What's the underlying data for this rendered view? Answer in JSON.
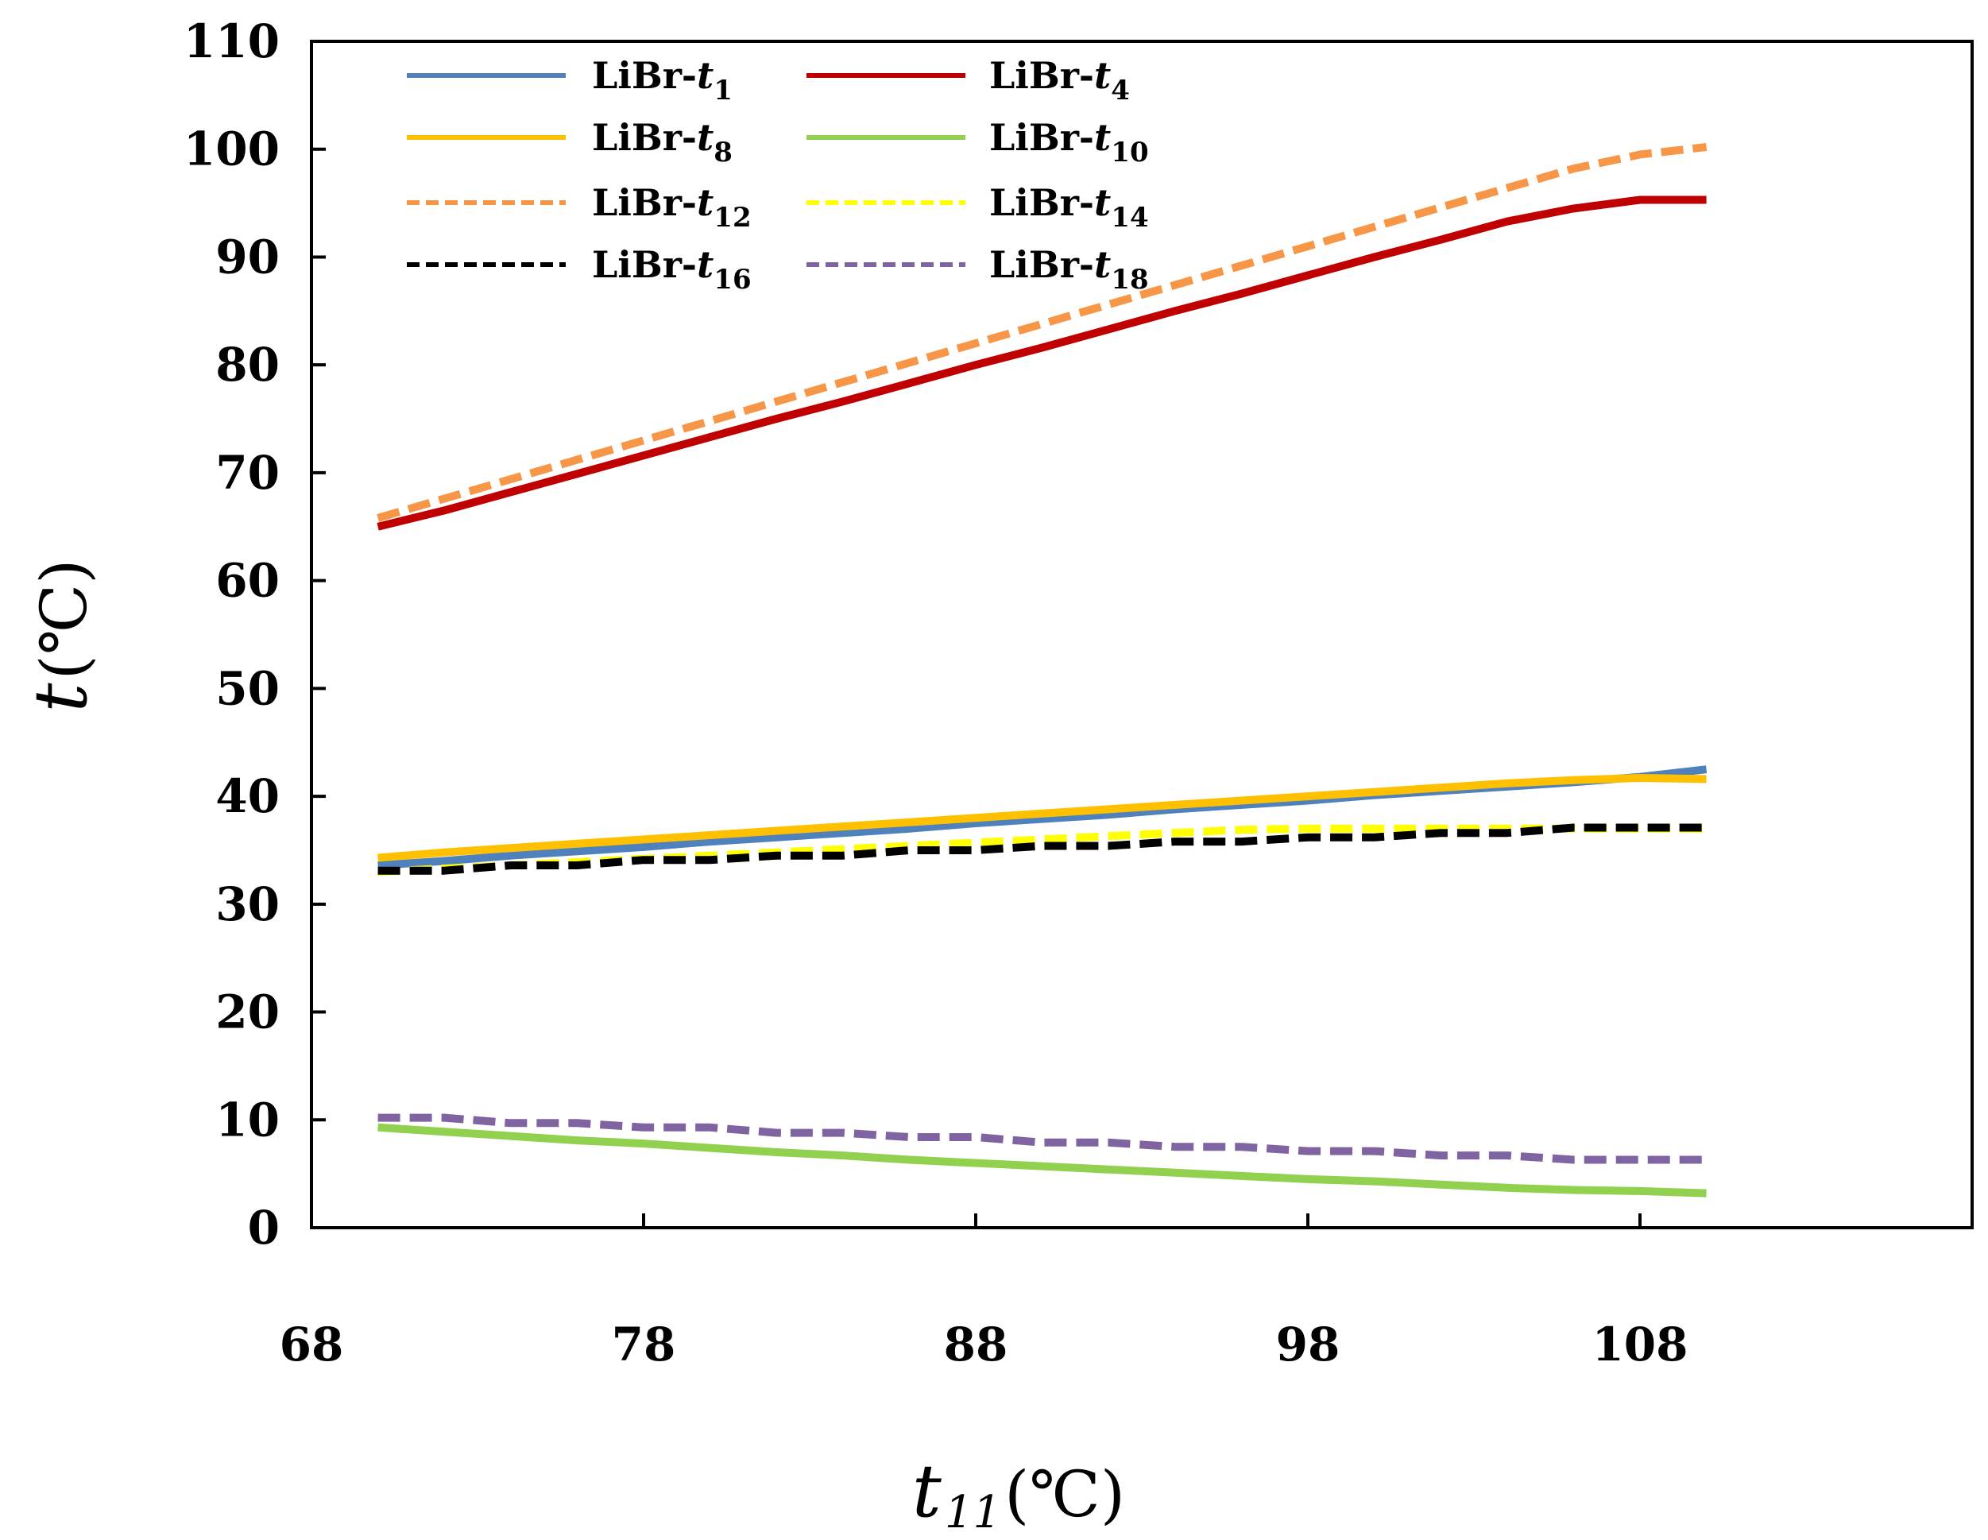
{
  "chart_data": {
    "type": "line",
    "title": "",
    "xlabel": {
      "main": "t",
      "sub": "11",
      "unit": "(℃)"
    },
    "ylabel": {
      "main": "t",
      "unit": "(℃)"
    },
    "xlim": [
      68,
      118
    ],
    "ylim": [
      0,
      110
    ],
    "xticks": [
      "68",
      "78",
      "88",
      "98",
      "108"
    ],
    "yticks": [
      "0",
      "10",
      "20",
      "30",
      "40",
      "50",
      "60",
      "70",
      "80",
      "90",
      "100",
      "110"
    ],
    "grid": false,
    "legend_position": "top-left",
    "x": [
      70,
      72,
      74,
      76,
      78,
      80,
      82,
      84,
      86,
      88,
      90,
      92,
      94,
      96,
      98,
      100,
      102,
      104,
      106,
      108,
      110
    ],
    "series": [
      {
        "name": "LiBr-t1",
        "label_main": "LiBr-",
        "label_var": "t",
        "label_sub": "1",
        "color": "#4f81bd",
        "dash": "solid",
        "values": [
          33.6,
          34.0,
          34.5,
          34.9,
          35.3,
          35.8,
          36.2,
          36.6,
          37.0,
          37.5,
          37.9,
          38.3,
          38.8,
          39.2,
          39.6,
          40.1,
          40.5,
          40.9,
          41.3,
          41.8,
          42.5
        ]
      },
      {
        "name": "LiBr-t4",
        "label_main": "LiBr-",
        "label_var": "t",
        "label_sub": "4",
        "color": "#c00000",
        "dash": "solid",
        "values": [
          65.0,
          66.5,
          68.2,
          69.9,
          71.6,
          73.3,
          75.0,
          76.6,
          78.3,
          80.0,
          81.6,
          83.3,
          85.0,
          86.6,
          88.3,
          90.0,
          91.6,
          93.3,
          94.5,
          95.3,
          95.3
        ]
      },
      {
        "name": "LiBr-t8",
        "label_main": "LiBr-",
        "label_var": "t",
        "label_sub": "8",
        "color": "#ffc000",
        "dash": "solid",
        "values": [
          34.3,
          34.8,
          35.2,
          35.6,
          36.0,
          36.4,
          36.8,
          37.2,
          37.6,
          38.0,
          38.4,
          38.8,
          39.2,
          39.6,
          40.0,
          40.4,
          40.8,
          41.2,
          41.5,
          41.7,
          41.6
        ]
      },
      {
        "name": "LiBr-t10",
        "label_main": "LiBr-",
        "label_var": "t",
        "label_sub": "10",
        "color": "#92d050",
        "dash": "solid",
        "values": [
          9.3,
          8.9,
          8.5,
          8.1,
          7.8,
          7.4,
          7.0,
          6.7,
          6.3,
          6.0,
          5.7,
          5.4,
          5.1,
          4.8,
          4.5,
          4.3,
          4.0,
          3.7,
          3.5,
          3.4,
          3.2
        ]
      },
      {
        "name": "LiBr-t12",
        "label_main": "LiBr-",
        "label_var": "t",
        "label_sub": "12",
        "color": "#f79646",
        "dash": "dash",
        "values": [
          65.8,
          67.6,
          69.4,
          71.2,
          73.0,
          74.8,
          76.6,
          78.4,
          80.2,
          82.0,
          83.8,
          85.6,
          87.4,
          89.2,
          91.0,
          92.8,
          94.6,
          96.4,
          98.2,
          99.5,
          100.2
        ]
      },
      {
        "name": "LiBr-t14",
        "label_main": "LiBr-",
        "label_var": "t",
        "label_sub": "14",
        "color": "#ffff00",
        "dash": "dash",
        "values": [
          33.0,
          33.3,
          33.6,
          33.9,
          34.2,
          34.5,
          34.8,
          35.1,
          35.4,
          35.7,
          36.0,
          36.3,
          36.6,
          36.9,
          37.0,
          37.0,
          37.0,
          37.0,
          37.0,
          37.0,
          37.0
        ]
      },
      {
        "name": "LiBr-t16",
        "label_main": "LiBr-",
        "label_var": "t",
        "label_sub": "16",
        "color": "#000000",
        "dash": "dash",
        "values": [
          33.1,
          33.1,
          33.6,
          33.6,
          34.1,
          34.1,
          34.5,
          34.5,
          35.0,
          35.0,
          35.4,
          35.4,
          35.8,
          35.8,
          36.2,
          36.2,
          36.6,
          36.6,
          37.1,
          37.1,
          37.1
        ]
      },
      {
        "name": "LiBr-t18",
        "label_main": "LiBr-",
        "label_var": "t",
        "label_sub": "18",
        "color": "#8064a2",
        "dash": "dash",
        "values": [
          10.2,
          10.2,
          9.7,
          9.7,
          9.3,
          9.3,
          8.8,
          8.8,
          8.4,
          8.4,
          7.9,
          7.9,
          7.5,
          7.5,
          7.1,
          7.1,
          6.7,
          6.7,
          6.3,
          6.3,
          6.3
        ]
      }
    ]
  }
}
